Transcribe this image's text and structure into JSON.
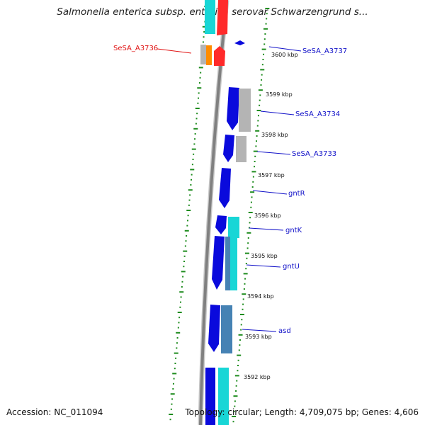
{
  "title": "Salmonella enterica subsp. enterica serovar Schwarzengrund s...",
  "accession": "Accession: NC_011094",
  "summary": "Topology: circular; Length: 4,709,075 bp; Genes: 4,606",
  "colors": {
    "backbone": "#888888",
    "forward_track": "#0a0adc",
    "reverse_track_cyan": "#18d6d6",
    "reverse_track_grey": "#b4b4b4",
    "reverse_track_steel": "#4682b4",
    "highlight_red": "#ff2a2a",
    "highlight_orange": "#ff8c00",
    "tick_green": "#1e8c1e",
    "label_blue": "#1010c8",
    "label_red": "#e01010"
  },
  "tick_labels": [
    "3600 kbp",
    "3599 kbp",
    "3598 kbp",
    "3597 kbp",
    "3596 kbp",
    "3595 kbp",
    "3594 kbp",
    "3593 kbp",
    "3592 kbp"
  ],
  "gene_labels": [
    {
      "name": "SeSA_A3736",
      "side": "left",
      "color": "red"
    },
    {
      "name": "SeSA_A3737",
      "side": "right",
      "color": "blue"
    },
    {
      "name": "SeSA_A3734",
      "side": "right",
      "color": "blue"
    },
    {
      "name": "SeSA_A3733",
      "side": "right",
      "color": "blue"
    },
    {
      "name": "gntR",
      "side": "right",
      "color": "blue"
    },
    {
      "name": "gntK",
      "side": "right",
      "color": "blue"
    },
    {
      "name": "gntU",
      "side": "right",
      "color": "blue"
    },
    {
      "name": "asd",
      "side": "right",
      "color": "blue"
    }
  ]
}
